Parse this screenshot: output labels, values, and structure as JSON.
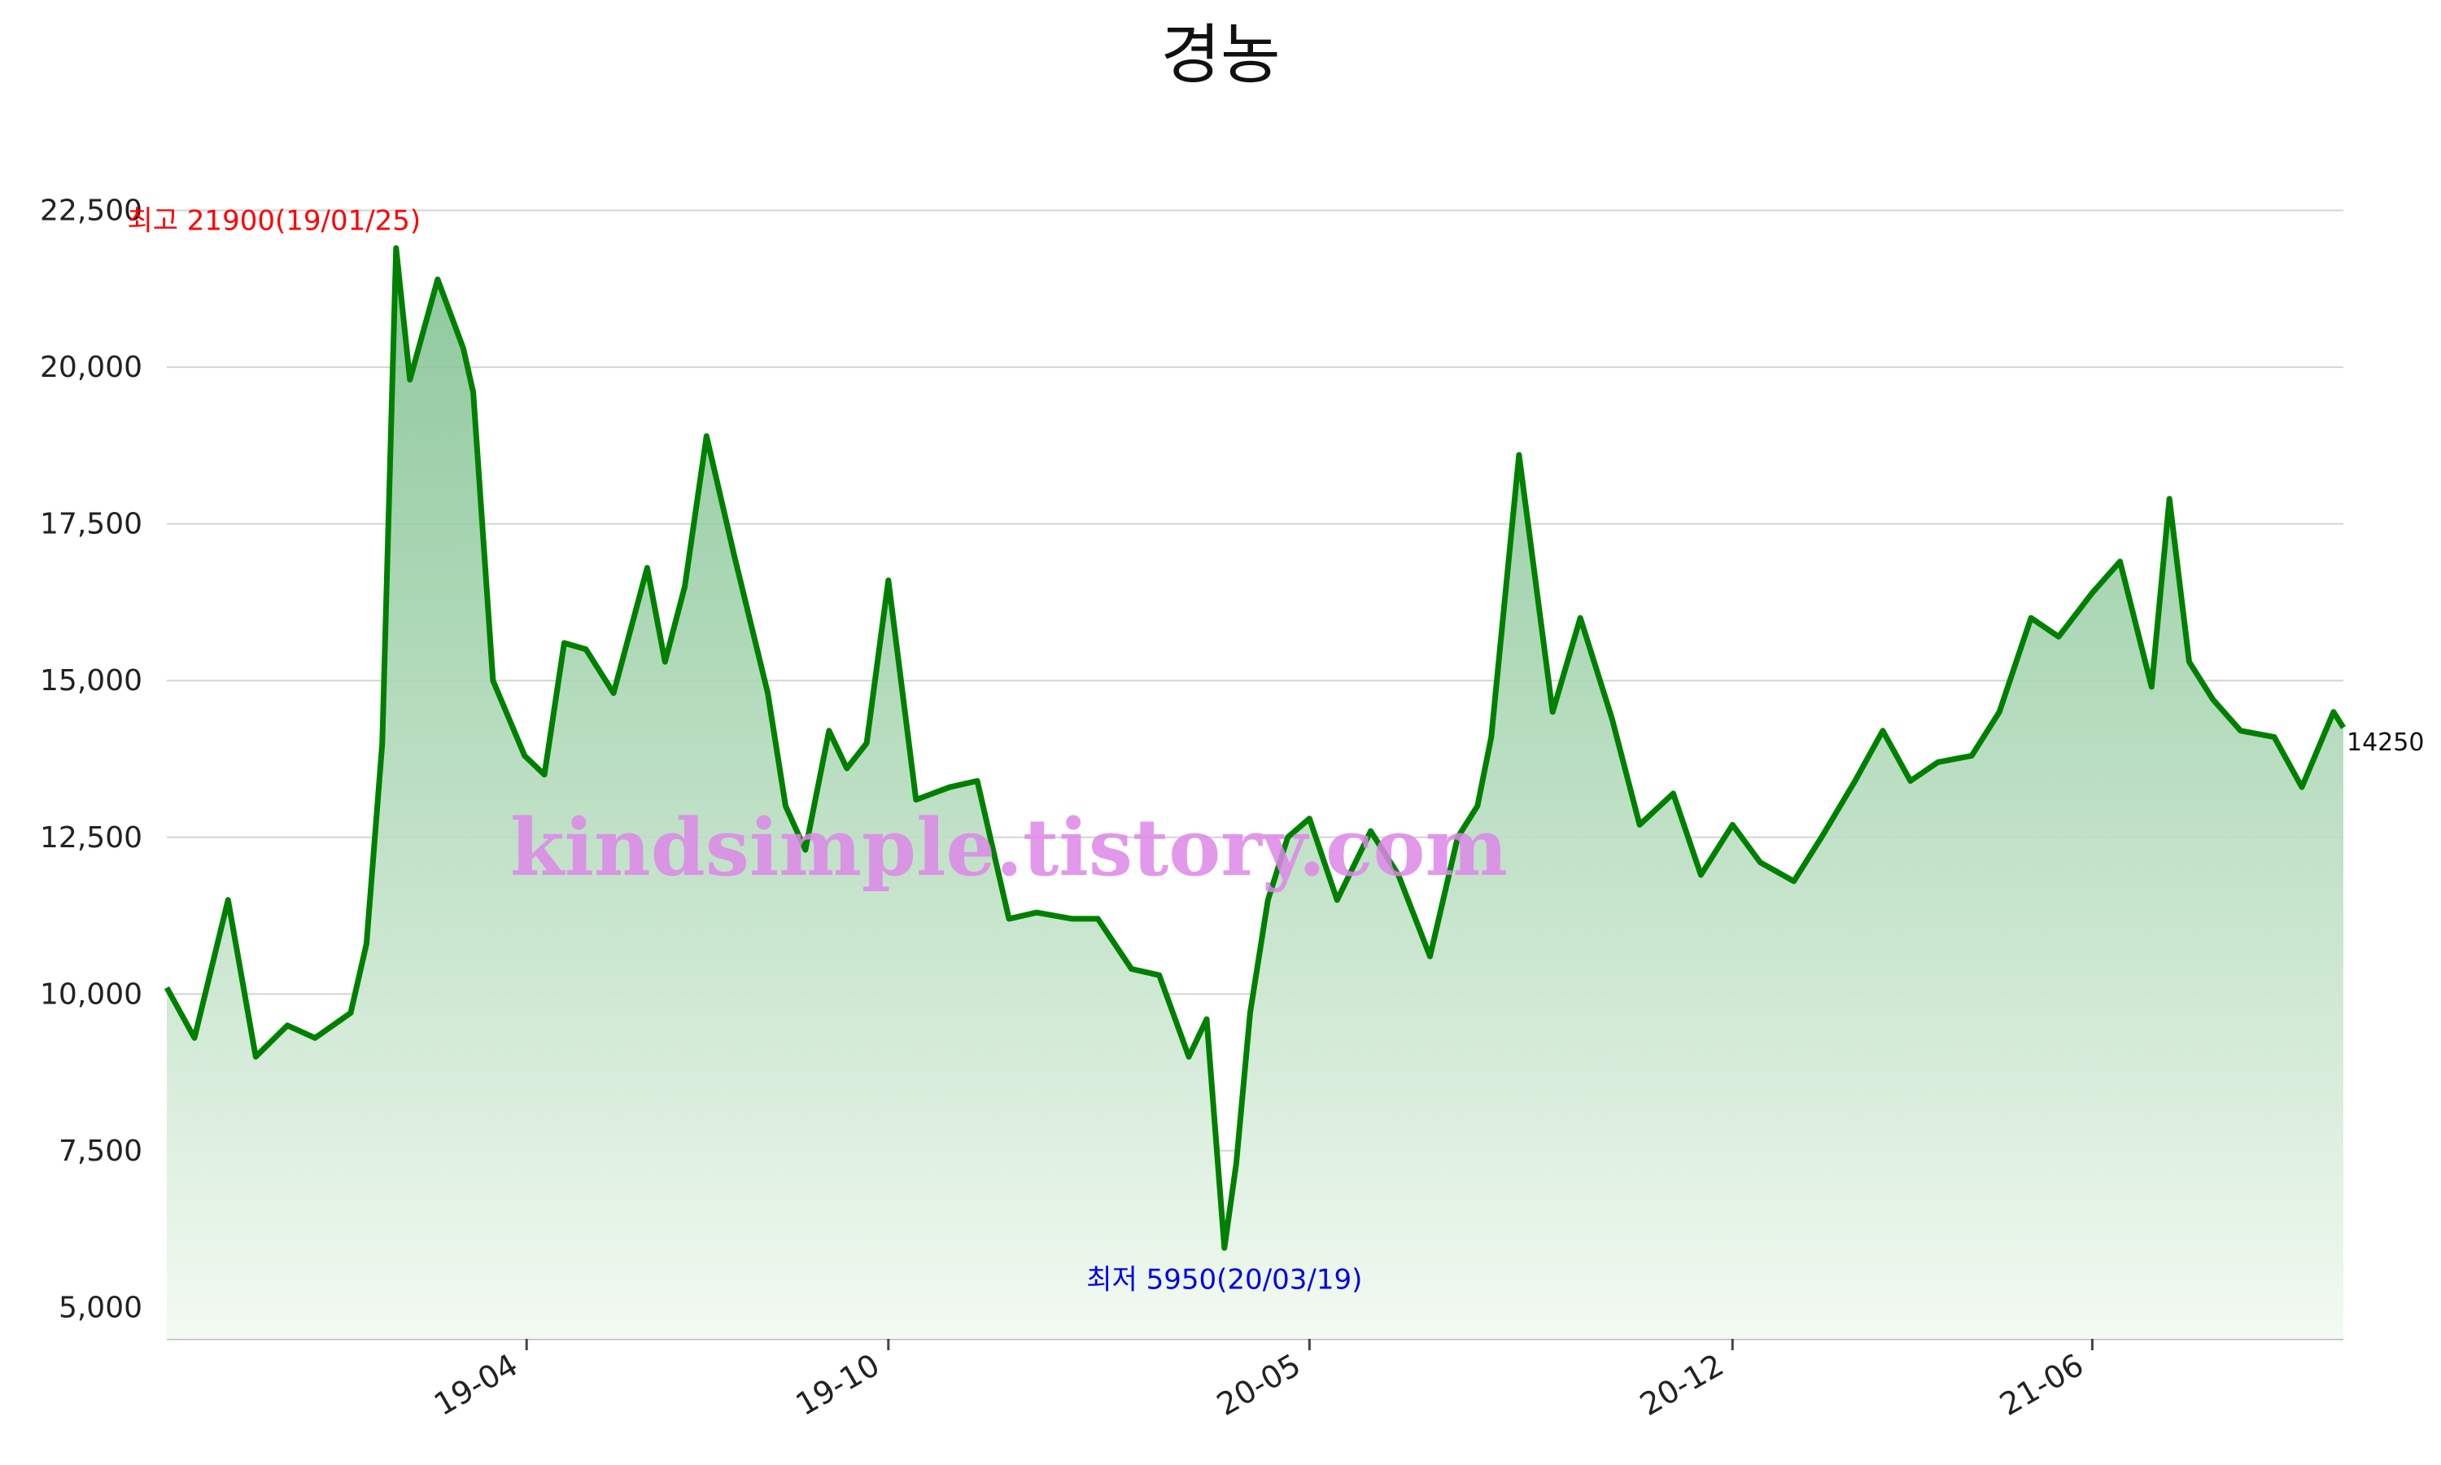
{
  "chart_data": {
    "type": "area",
    "title": "경농",
    "ylim": [
      4500,
      23000
    ],
    "yticks": [
      5000,
      7500,
      10000,
      12500,
      15000,
      17500,
      20000,
      22500
    ],
    "ytick_labels": [
      "5,000",
      "7,500",
      "10,000",
      "12,500",
      "15,000",
      "17,500",
      "20,000",
      "22,500"
    ],
    "xlim": [
      "2018-10-01",
      "2021-10-06"
    ],
    "xticks": [
      "2019-04-01",
      "2019-10-01",
      "2020-05-01",
      "2020-12-01",
      "2021-06-01"
    ],
    "xtick_labels": [
      "19-04",
      "19-10",
      "20-05",
      "20-12",
      "21-06"
    ],
    "grid": "horizontal",
    "line_color": "#008000",
    "fill_color_top": "#7bbf8c",
    "fill_color_bottom": "#f3faf2",
    "annotations": {
      "high": "최고 21900(19/01/25)",
      "low": "최저 5950(20/03/19)",
      "last": "14250"
    },
    "watermark": "kindsimple.tistory.com",
    "series": [
      {
        "x": [
          "2018-10-01",
          "2018-10-15",
          "2018-11-01",
          "2018-11-15",
          "2018-12-01",
          "2018-12-15",
          "2019-01-02",
          "2019-01-10",
          "2019-01-18",
          "2019-01-25",
          "2019-02-01",
          "2019-02-15",
          "2019-02-28",
          "2019-03-05",
          "2019-03-15",
          "2019-03-31",
          "2019-04-10",
          "2019-04-20",
          "2019-05-01",
          "2019-05-15",
          "2019-06-01",
          "2019-06-10",
          "2019-06-20",
          "2019-07-01",
          "2019-07-15",
          "2019-08-01",
          "2019-08-10",
          "2019-08-20",
          "2019-09-01",
          "2019-09-10",
          "2019-09-20",
          "2019-10-01",
          "2019-10-15",
          "2019-11-01",
          "2019-11-15",
          "2019-12-01",
          "2019-12-15",
          "2020-01-02",
          "2020-01-15",
          "2020-02-01",
          "2020-02-15",
          "2020-03-01",
          "2020-03-10",
          "2020-03-19",
          "2020-03-25",
          "2020-04-01",
          "2020-04-10",
          "2020-04-20",
          "2020-05-01",
          "2020-05-15",
          "2020-06-01",
          "2020-06-15",
          "2020-07-01",
          "2020-07-15",
          "2020-07-25",
          "2020-08-01",
          "2020-08-15",
          "2020-09-01",
          "2020-09-15",
          "2020-10-01",
          "2020-10-15",
          "2020-11-01",
          "2020-11-15",
          "2020-12-01",
          "2020-12-15",
          "2021-01-01",
          "2021-01-15",
          "2021-02-01",
          "2021-02-15",
          "2021-03-01",
          "2021-03-15",
          "2021-04-01",
          "2021-04-15",
          "2021-05-01",
          "2021-05-15",
          "2021-06-01",
          "2021-06-15",
          "2021-07-01",
          "2021-07-10",
          "2021-07-20",
          "2021-08-01",
          "2021-08-15",
          "2021-09-01",
          "2021-09-15",
          "2021-10-01",
          "2021-10-06"
        ],
        "y": [
          10100,
          9300,
          11500,
          9000,
          9500,
          9300,
          9700,
          10800,
          14000,
          21900,
          19800,
          21400,
          20300,
          19600,
          15000,
          13800,
          13500,
          15600,
          15500,
          14800,
          16800,
          15300,
          16500,
          18900,
          17000,
          14800,
          13000,
          12300,
          14200,
          13600,
          14000,
          16600,
          13100,
          13300,
          13400,
          11200,
          11300,
          11200,
          11200,
          10400,
          10300,
          9000,
          9600,
          5950,
          7300,
          9700,
          11500,
          12500,
          12800,
          11500,
          12600,
          11900,
          10600,
          12500,
          13000,
          14100,
          18600,
          14500,
          16000,
          14400,
          12700,
          13200,
          11900,
          12700,
          12100,
          11800,
          12500,
          13400,
          14200,
          13400,
          13700,
          13800,
          14500,
          16000,
          15700,
          16400,
          16900,
          14900,
          17900,
          15300,
          14700,
          14200,
          14100,
          13300,
          14500,
          14250
        ]
      }
    ]
  }
}
